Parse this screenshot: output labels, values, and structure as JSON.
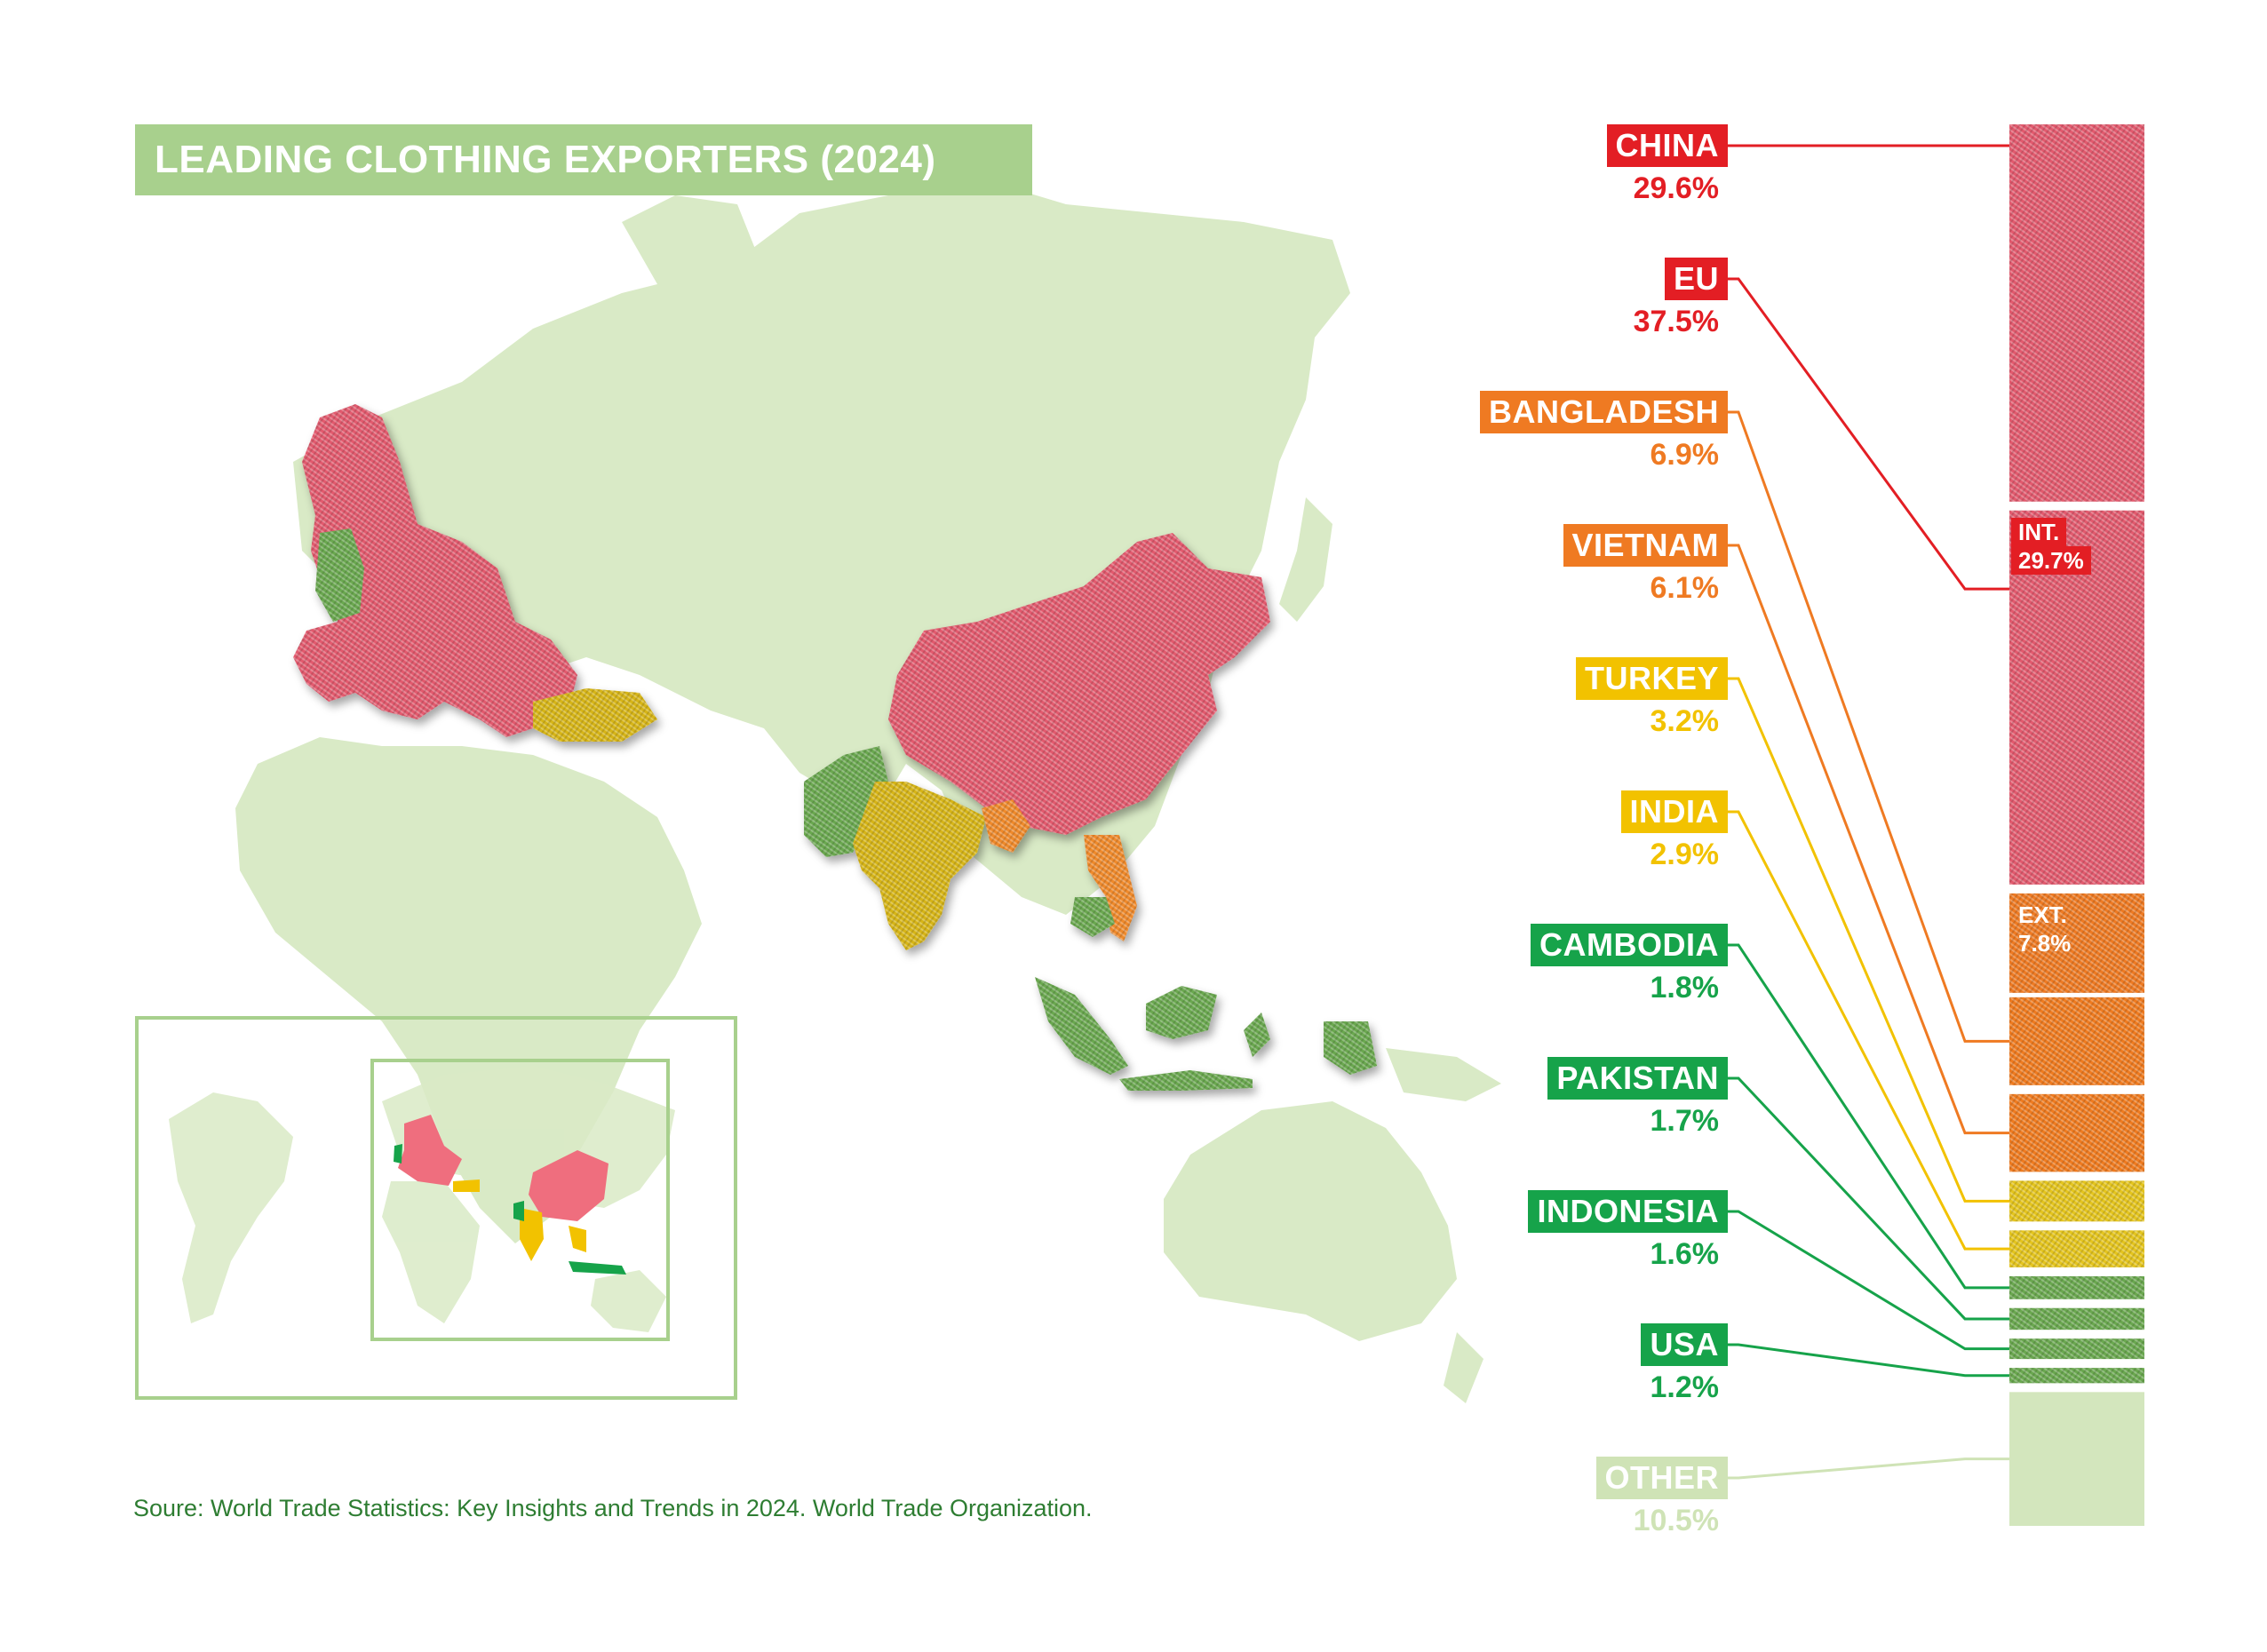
{
  "title": "LEADING CLOTHING EXPORTERS (2024)",
  "source": "Soure: World Trade Statistics: Key Insights and Trends in 2024. World Trade Organization.",
  "colors": {
    "red": "#e31e24",
    "orange": "#ef7a22",
    "yellow": "#f2c200",
    "green": "#16a34a",
    "pale": "#cfe3b6",
    "land": "#d9eac6"
  },
  "exporters": [
    {
      "name": "CHINA",
      "value": "29.6%",
      "share": 29.6,
      "color": "#e31e24"
    },
    {
      "name": "EU",
      "value": "37.5%",
      "share": 37.5,
      "color": "#e31e24"
    },
    {
      "name": "BANGLADESH",
      "value": "6.9%",
      "share": 6.9,
      "color": "#ef7a22"
    },
    {
      "name": "VIETNAM",
      "value": "6.1%",
      "share": 6.1,
      "color": "#ef7a22"
    },
    {
      "name": "TURKEY",
      "value": "3.2%",
      "share": 3.2,
      "color": "#f2c200"
    },
    {
      "name": "INDIA",
      "value": "2.9%",
      "share": 2.9,
      "color": "#f2c200"
    },
    {
      "name": "CAMBODIA",
      "value": "1.8%",
      "share": 1.8,
      "color": "#16a34a"
    },
    {
      "name": "PAKISTAN",
      "value": "1.7%",
      "share": 1.7,
      "color": "#16a34a"
    },
    {
      "name": "INDONESIA",
      "value": "1.6%",
      "share": 1.6,
      "color": "#16a34a"
    },
    {
      "name": "USA",
      "value": "1.2%",
      "share": 1.2,
      "color": "#16a34a"
    },
    {
      "name": "OTHER",
      "value": "10.5%",
      "share": 10.5,
      "color": "#cfe3b6"
    }
  ],
  "eu_split": [
    {
      "label": "INT.",
      "value": "29.7%",
      "share": 29.7
    },
    {
      "label": "EXT.",
      "value": "7.8%",
      "share": 7.8
    }
  ]
}
